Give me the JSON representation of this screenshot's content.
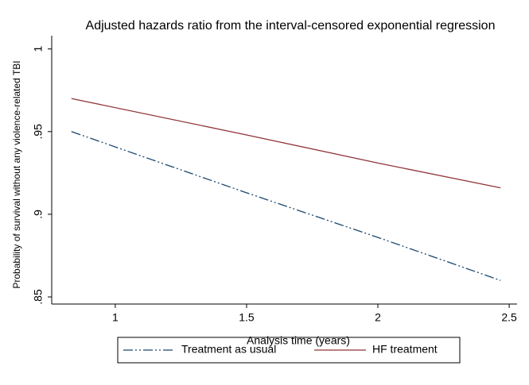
{
  "chart_data": {
    "type": "line",
    "title": "Adjusted hazards ratio from the interval-censored exponential regression",
    "x_label": "Analysis time (years)",
    "y_label": "Probability of survival  without any violence-related TBI",
    "x": [
      0.833,
      1.5,
      2,
      2.467
    ],
    "series": [
      {
        "name": "Treatment as usual",
        "color": "#1a476f",
        "values": [
          0.95,
          0.913,
          0.886,
          0.86
        ]
      },
      {
        "name": "HF treatment",
        "color": "#90353b",
        "values": [
          0.97,
          0.948,
          0.931,
          0.916
        ]
      }
    ],
    "xlim": [
      0.758,
      2.53
    ],
    "xticks": [
      1,
      1.5,
      2,
      2.5
    ],
    "ylim": [
      0.8457,
      1.008
    ],
    "yticks": [
      {
        "value": 0.85,
        "label": ".85"
      },
      {
        "value": 0.9,
        "label": ".9"
      },
      {
        "value": 0.95,
        "label": ".95"
      },
      1
    ],
    "legend": "bottom",
    "grid": false
  }
}
